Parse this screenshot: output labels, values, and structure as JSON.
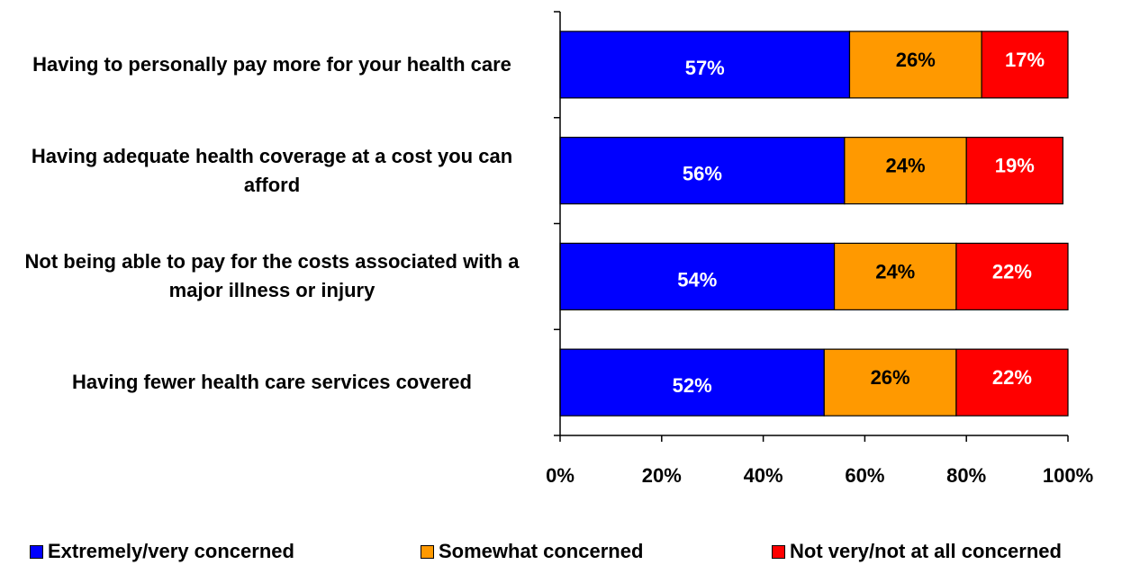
{
  "chart_data": {
    "type": "bar",
    "orientation": "horizontal",
    "stacked": true,
    "categories": [
      "Having to personally pay more for your health care",
      "Having adequate health coverage at a cost you can afford",
      "Not being able to pay for the costs associated with a major illness or injury",
      "Having fewer health care services covered"
    ],
    "series": [
      {
        "name": "Extremely/very concerned",
        "color": "#0000FF",
        "label_color": "#FFFFFF",
        "values": [
          57,
          56,
          54,
          52
        ],
        "labels": [
          "57%",
          "56%",
          "54%",
          "52%"
        ]
      },
      {
        "name": "Somewhat concerned",
        "color": "#FF9900",
        "label_color": "#000000",
        "values": [
          26,
          24,
          24,
          26
        ],
        "labels": [
          "26%",
          "24%",
          "24%",
          "26%"
        ]
      },
      {
        "name": "Not very/not at all concerned",
        "color": "#FF0000",
        "label_color": "#FFFFFF",
        "values": [
          17,
          19,
          22,
          22
        ],
        "labels": [
          "17%",
          "19%",
          "22%",
          "22%"
        ]
      }
    ],
    "xlim": [
      0,
      100
    ],
    "x_ticks": [
      0,
      20,
      40,
      60,
      80,
      100
    ],
    "x_tick_labels": [
      "0%",
      "20%",
      "40%",
      "60%",
      "80%",
      "100%"
    ],
    "grid": false,
    "legend_position": "bottom"
  }
}
